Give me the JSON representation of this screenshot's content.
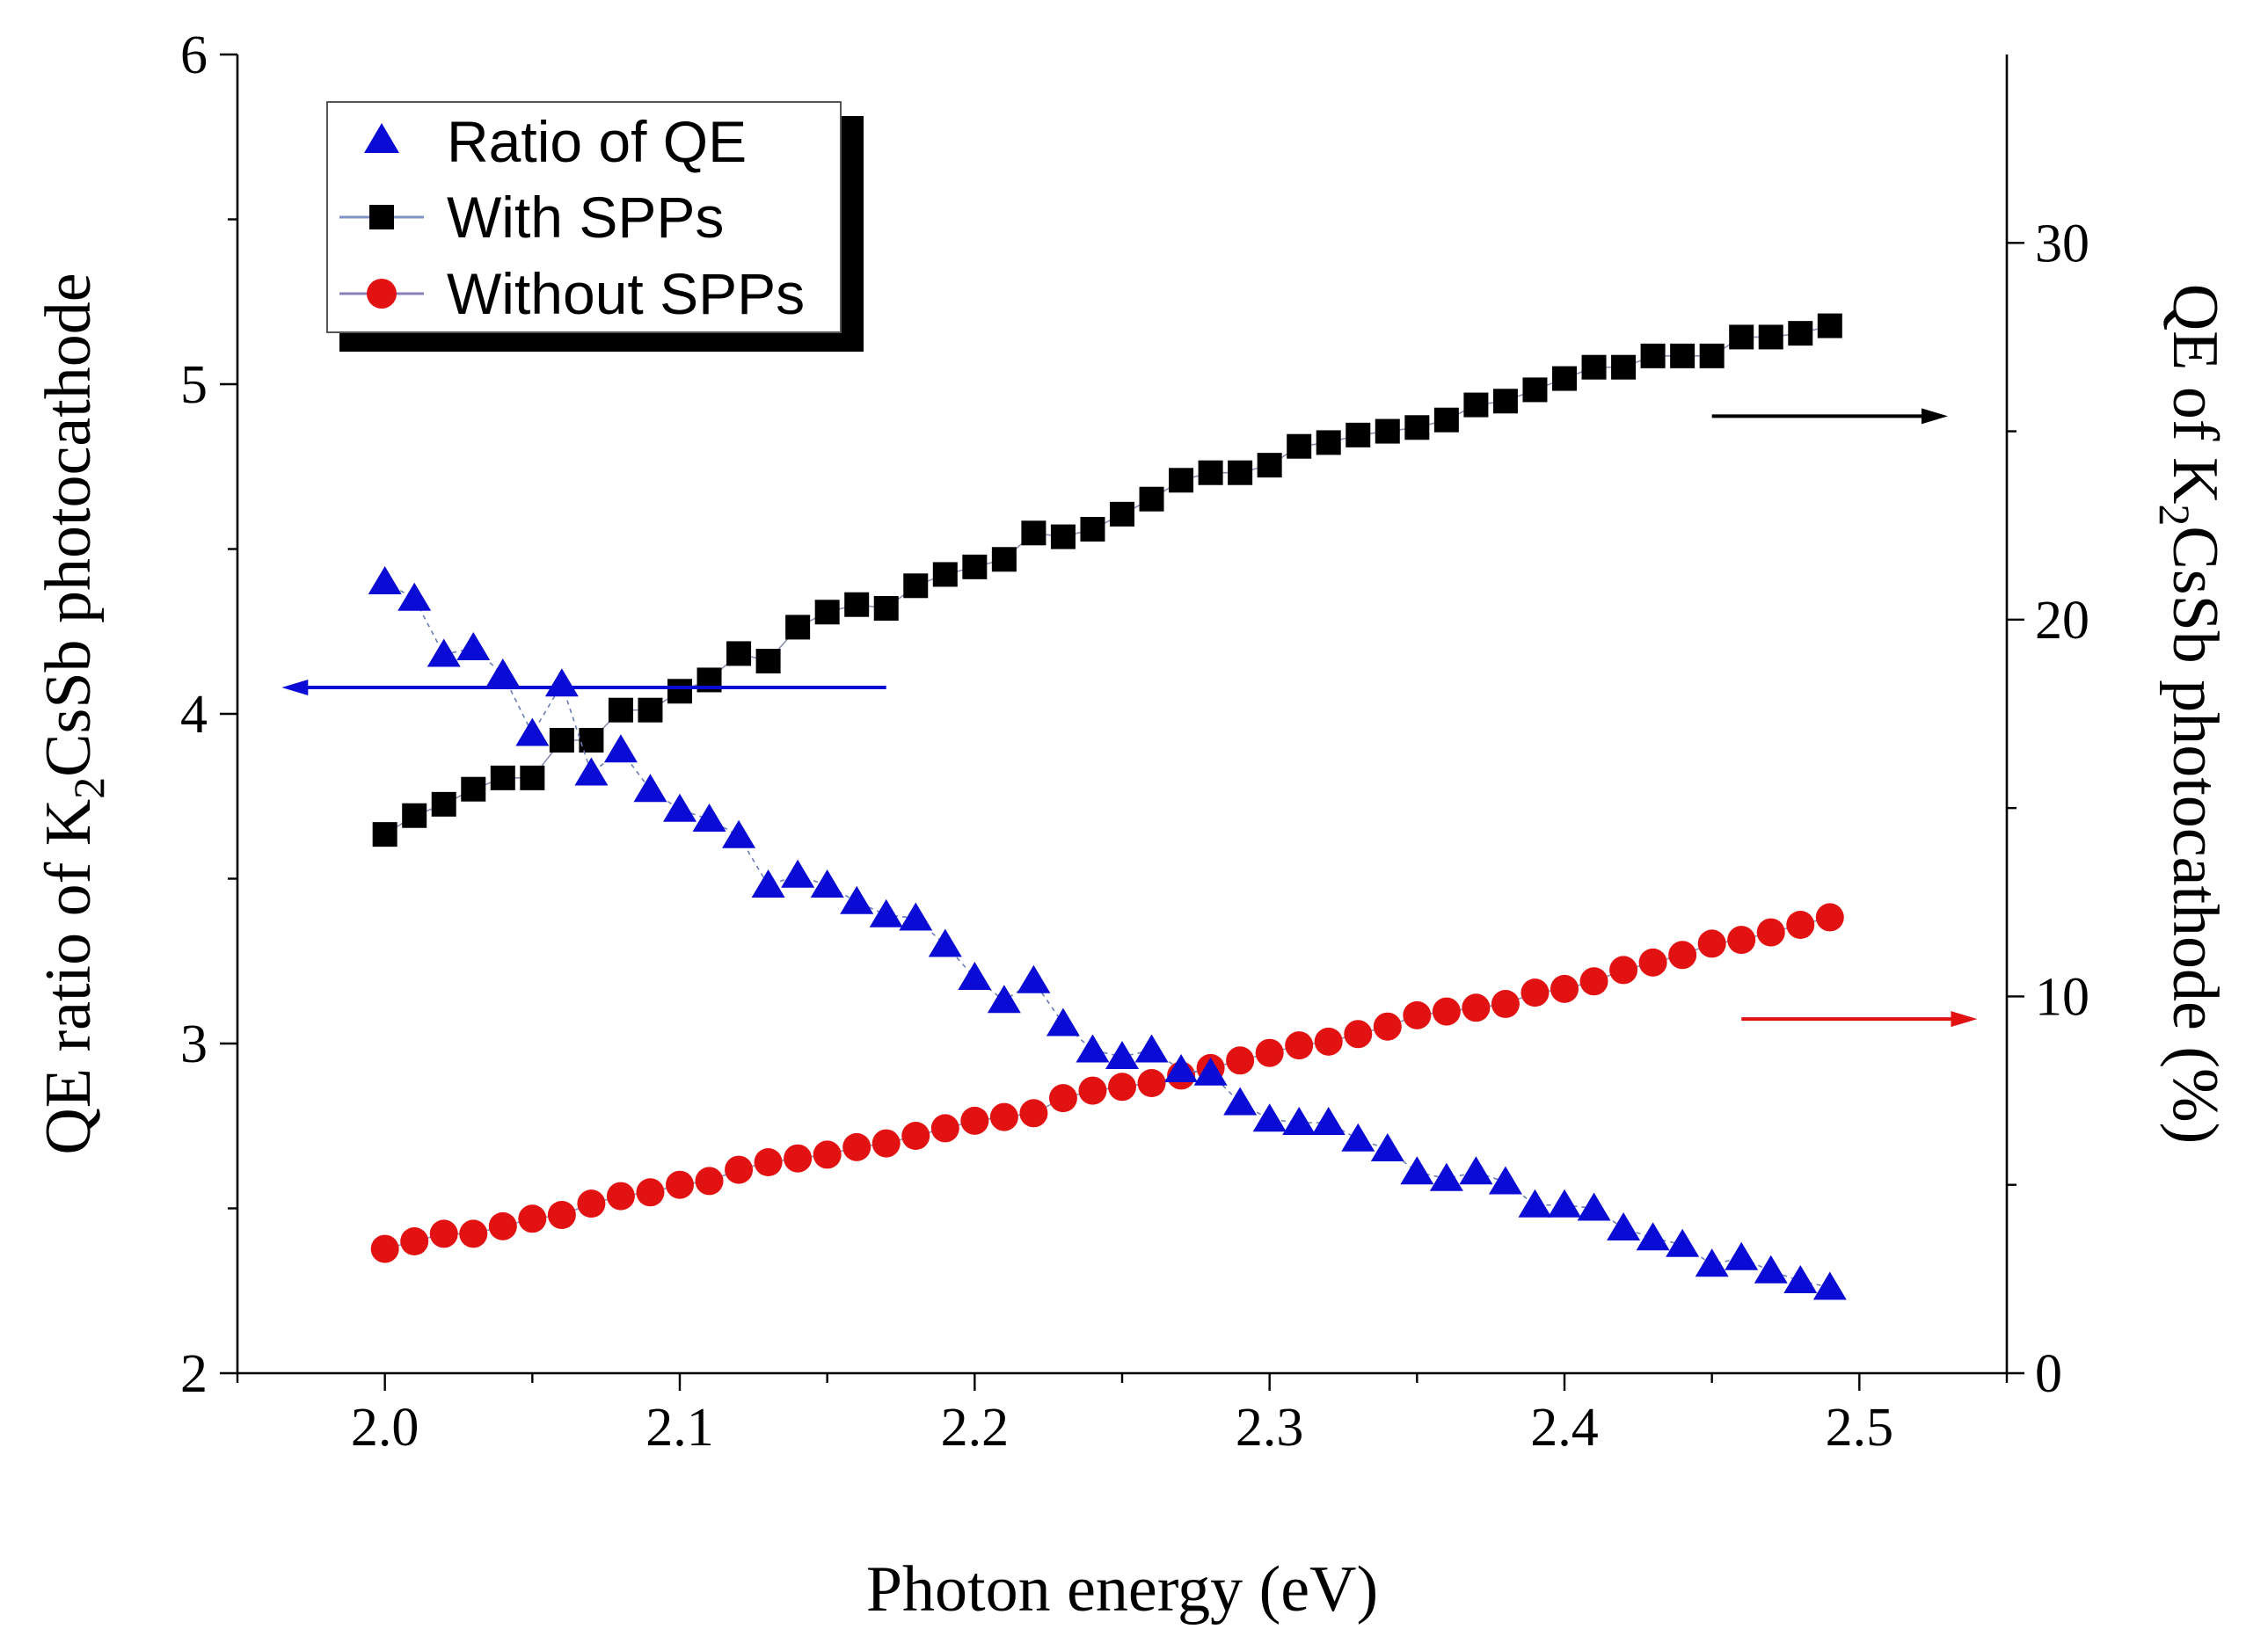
{
  "chart_data": {
    "type": "scatter",
    "xlabel": "Photon energy (eV)",
    "ylabel_left": {
      "prefix": "QE ratio of K",
      "sub": "2",
      "suffix": "CsSb photocathode"
    },
    "ylabel_right": {
      "prefix": "QE of K",
      "sub": "2",
      "suffix": "CsSb photocathode (%)"
    },
    "xlim": [
      1.95,
      2.55
    ],
    "ylim_left": [
      2,
      6
    ],
    "ylim_right": [
      0,
      35
    ],
    "xticks": [
      2.0,
      2.1,
      2.2,
      2.3,
      2.4,
      2.5
    ],
    "xtick_labels": [
      "2.0",
      "2.1",
      "2.2",
      "2.3",
      "2.4",
      "2.5"
    ],
    "yticks_left": [
      2,
      3,
      4,
      5,
      6
    ],
    "ytick_labels_left": [
      "2",
      "3",
      "4",
      "5",
      "6"
    ],
    "yticks_right": [
      0,
      10,
      20,
      30
    ],
    "ytick_labels_right": [
      "0",
      "10",
      "20",
      "30"
    ],
    "x": [
      2.0,
      2.01,
      2.02,
      2.03,
      2.04,
      2.05,
      2.06,
      2.07,
      2.08,
      2.09,
      2.1,
      2.11,
      2.12,
      2.13,
      2.14,
      2.15,
      2.16,
      2.17,
      2.18,
      2.19,
      2.2,
      2.21,
      2.22,
      2.23,
      2.24,
      2.25,
      2.26,
      2.27,
      2.28,
      2.29,
      2.3,
      2.31,
      2.32,
      2.33,
      2.34,
      2.35,
      2.36,
      2.37,
      2.38,
      2.39,
      2.4,
      2.41,
      2.42,
      2.43,
      2.44,
      2.45,
      2.46,
      2.47,
      2.48,
      2.49
    ],
    "series": [
      {
        "name": "Ratio of QE",
        "axis": "left",
        "marker": "triangle",
        "color": "#0b0bd6",
        "values": [
          4.4,
          4.35,
          4.18,
          4.2,
          4.12,
          3.94,
          4.09,
          3.82,
          3.89,
          3.77,
          3.71,
          3.68,
          3.63,
          3.48,
          3.51,
          3.48,
          3.43,
          3.39,
          3.38,
          3.3,
          3.2,
          3.13,
          3.19,
          3.06,
          2.98,
          2.96,
          2.98,
          2.92,
          2.91,
          2.82,
          2.77,
          2.76,
          2.76,
          2.71,
          2.68,
          2.61,
          2.59,
          2.61,
          2.58,
          2.51,
          2.51,
          2.5,
          2.44,
          2.41,
          2.39,
          2.33,
          2.35,
          2.31,
          2.28,
          2.26
        ]
      },
      {
        "name": "With SPPs",
        "axis": "right",
        "marker": "square",
        "color": "#000000",
        "values": [
          14.3,
          14.8,
          15.1,
          15.5,
          15.8,
          15.8,
          16.8,
          16.8,
          17.6,
          17.6,
          18.1,
          18.4,
          19.1,
          18.9,
          19.8,
          20.2,
          20.4,
          20.3,
          20.9,
          21.2,
          21.4,
          21.6,
          22.3,
          22.2,
          22.4,
          22.8,
          23.2,
          23.7,
          23.9,
          23.9,
          24.1,
          24.6,
          24.7,
          24.9,
          25.0,
          25.1,
          25.3,
          25.7,
          25.8,
          26.1,
          26.4,
          26.7,
          26.7,
          27.0,
          27.0,
          27.0,
          27.5,
          27.5,
          27.6,
          27.8
        ]
      },
      {
        "name": "Without SPPs",
        "axis": "right",
        "marker": "circle",
        "color": "#e31212",
        "values": [
          3.3,
          3.5,
          3.7,
          3.7,
          3.9,
          4.1,
          4.2,
          4.5,
          4.7,
          4.8,
          5.0,
          5.1,
          5.4,
          5.6,
          5.7,
          5.8,
          6.0,
          6.1,
          6.3,
          6.5,
          6.7,
          6.8,
          6.9,
          7.3,
          7.5,
          7.6,
          7.7,
          7.9,
          8.1,
          8.3,
          8.5,
          8.7,
          8.8,
          9.0,
          9.2,
          9.5,
          9.6,
          9.7,
          9.8,
          10.1,
          10.2,
          10.4,
          10.7,
          10.9,
          11.1,
          11.4,
          11.5,
          11.7,
          11.9,
          12.1
        ]
      }
    ],
    "legend": {
      "placement": "top-left",
      "entries": [
        "Ratio of QE",
        "With SPPs",
        "Without SPPs"
      ]
    },
    "annotations": [
      {
        "kind": "arrow",
        "direction": "left",
        "series": "Ratio of QE",
        "color": "#0b0bd6",
        "x_start": 2.17,
        "x_end": 1.965,
        "y_left": 4.08
      },
      {
        "kind": "arrow",
        "direction": "right",
        "series": "With SPPs",
        "color": "#000000",
        "x_start": 2.45,
        "x_end": 2.53,
        "y_right": 25.4
      },
      {
        "kind": "arrow",
        "direction": "right",
        "series": "Without SPPs",
        "color": "#e31212",
        "x_start": 2.46,
        "x_end": 2.54,
        "y_right": 9.4
      }
    ],
    "grid": false
  }
}
